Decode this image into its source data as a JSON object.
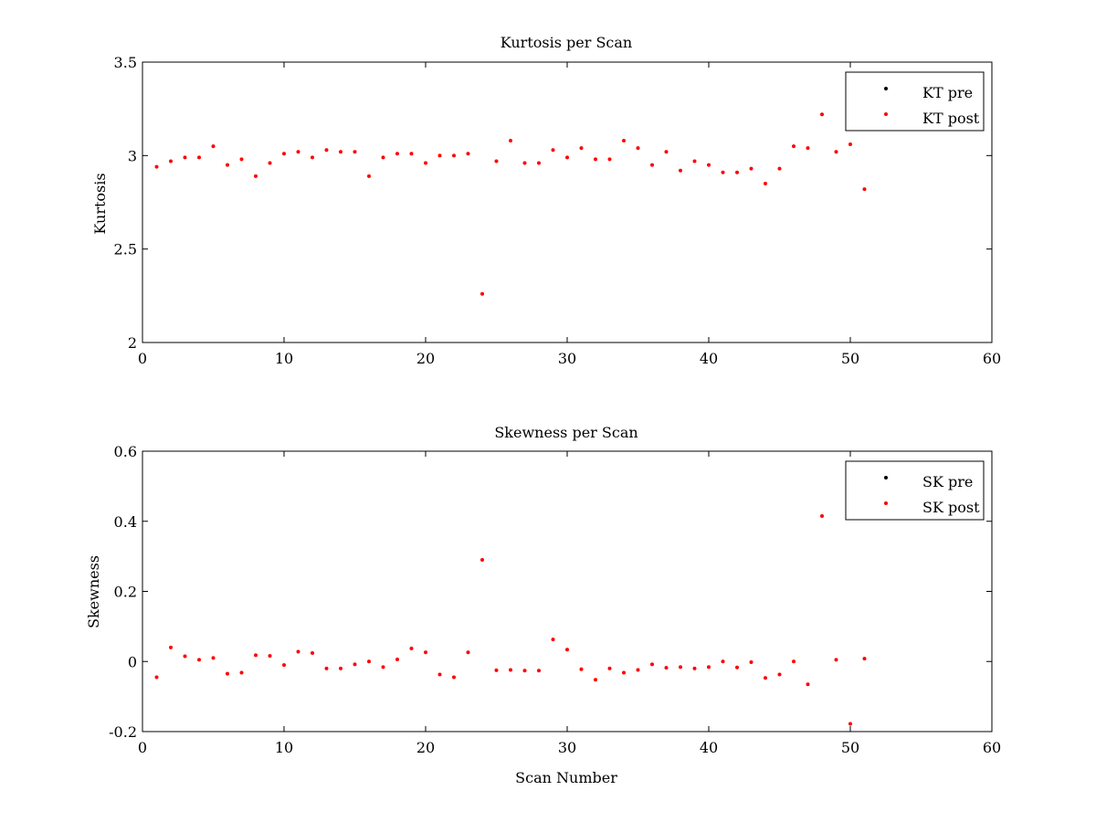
{
  "chart_data": [
    {
      "type": "scatter",
      "title": "Kurtosis per Scan",
      "xlabel": "",
      "ylabel": "Kurtosis",
      "xlim": [
        0,
        60
      ],
      "ylim": [
        2,
        3.5
      ],
      "xticks": [
        "0",
        "10",
        "20",
        "30",
        "40",
        "50",
        "60"
      ],
      "yticks": [
        "2",
        "2.5",
        "3",
        "3.5"
      ],
      "legend_position": "top-right",
      "grid": false,
      "series": [
        {
          "name": "KT pre",
          "color": "#000000",
          "x": [],
          "y": []
        },
        {
          "name": "KT post",
          "color": "#ff0000",
          "x": [
            1,
            2,
            3,
            4,
            5,
            6,
            7,
            8,
            9,
            10,
            11,
            12,
            13,
            14,
            15,
            16,
            17,
            18,
            19,
            20,
            21,
            22,
            23,
            24,
            25,
            26,
            27,
            28,
            29,
            30,
            31,
            32,
            33,
            34,
            35,
            36,
            37,
            38,
            39,
            40,
            41,
            42,
            43,
            44,
            45,
            46,
            47,
            48,
            49,
            50,
            51
          ],
          "y": [
            2.94,
            2.97,
            2.99,
            2.99,
            3.05,
            2.95,
            2.98,
            2.89,
            2.96,
            3.01,
            3.02,
            2.99,
            3.03,
            3.02,
            3.02,
            2.89,
            2.99,
            3.01,
            3.01,
            2.96,
            3.0,
            3.0,
            3.01,
            2.26,
            2.97,
            3.08,
            2.96,
            2.96,
            3.03,
            2.99,
            3.04,
            2.98,
            2.98,
            3.08,
            3.04,
            2.95,
            3.02,
            2.92,
            2.97,
            2.95,
            2.91,
            2.91,
            2.93,
            2.85,
            2.93,
            3.05,
            3.04,
            3.22,
            3.02,
            3.06,
            2.82
          ]
        }
      ]
    },
    {
      "type": "scatter",
      "title": "Skewness per Scan",
      "xlabel": "Scan Number",
      "ylabel": "Skewness",
      "xlim": [
        0,
        60
      ],
      "ylim": [
        -0.2,
        0.6
      ],
      "xticks": [
        "0",
        "10",
        "20",
        "30",
        "40",
        "50",
        "60"
      ],
      "yticks": [
        "-0.2",
        "0",
        "0.2",
        "0.4",
        "0.6"
      ],
      "legend_position": "top-right",
      "grid": false,
      "series": [
        {
          "name": "SK pre",
          "color": "#000000",
          "x": [],
          "y": []
        },
        {
          "name": "SK post",
          "color": "#ff0000",
          "x": [
            1,
            2,
            3,
            4,
            5,
            6,
            7,
            8,
            9,
            10,
            11,
            12,
            13,
            14,
            15,
            16,
            17,
            18,
            19,
            20,
            21,
            22,
            23,
            24,
            25,
            26,
            27,
            28,
            29,
            30,
            31,
            32,
            33,
            34,
            35,
            36,
            37,
            38,
            39,
            40,
            41,
            42,
            43,
            44,
            45,
            46,
            47,
            48,
            49,
            50,
            51
          ],
          "y": [
            -0.045,
            0.04,
            0.015,
            0.005,
            0.01,
            -0.035,
            -0.032,
            0.018,
            0.016,
            -0.01,
            0.028,
            0.024,
            -0.02,
            -0.02,
            -0.008,
            0.0,
            -0.016,
            0.006,
            0.037,
            0.026,
            -0.037,
            -0.045,
            0.026,
            0.29,
            -0.025,
            -0.024,
            -0.026,
            -0.026,
            0.063,
            0.034,
            -0.022,
            -0.052,
            -0.02,
            -0.032,
            -0.024,
            -0.008,
            -0.018,
            -0.016,
            -0.02,
            -0.016,
            0.0,
            -0.017,
            -0.002,
            -0.047,
            -0.037,
            0.0,
            -0.065,
            0.415,
            0.005,
            -0.178,
            0.008
          ]
        }
      ]
    }
  ]
}
